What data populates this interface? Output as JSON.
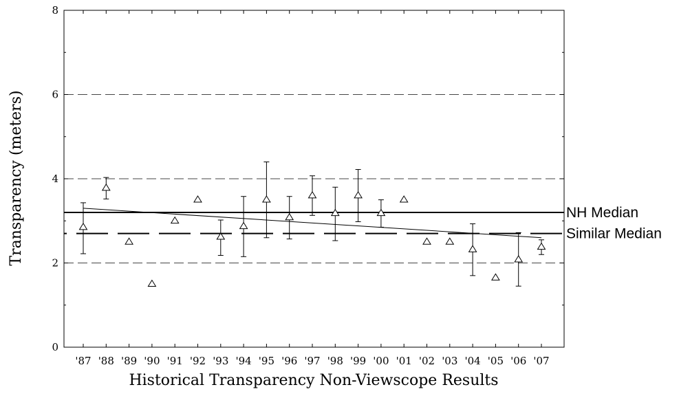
{
  "chart_data": {
    "type": "scatter",
    "xlabel": "Historical Transparency Non-Viewscope Results",
    "ylabel": "Transparency (meters)",
    "ylim": [
      0,
      8
    ],
    "yticks": [
      0,
      2,
      4,
      6,
      8
    ],
    "gridlines": [
      2,
      4,
      6
    ],
    "categories": [
      "'87",
      "'88",
      "'89",
      "'90",
      "'91",
      "'92",
      "'93",
      "'94",
      "'95",
      "'96",
      "'97",
      "'98",
      "'99",
      "'00",
      "'01",
      "'02",
      "'03",
      "'04",
      "'05",
      "'06",
      "'07"
    ],
    "series": [
      {
        "marker": "triangle",
        "values": [
          2.85,
          3.78,
          2.5,
          1.5,
          3.0,
          3.5,
          2.62,
          2.87,
          3.5,
          3.08,
          3.6,
          3.18,
          3.6,
          3.18,
          3.5,
          2.5,
          2.5,
          2.32,
          1.65,
          2.08,
          2.38
        ],
        "err_low": [
          2.22,
          3.52,
          null,
          null,
          null,
          null,
          2.18,
          2.15,
          2.6,
          2.57,
          3.13,
          2.53,
          2.98,
          2.85,
          null,
          null,
          null,
          1.7,
          null,
          1.45,
          2.2
        ],
        "err_high": [
          3.43,
          4.03,
          null,
          null,
          null,
          null,
          3.02,
          3.58,
          4.4,
          3.58,
          4.07,
          3.8,
          4.22,
          3.5,
          null,
          null,
          null,
          2.93,
          null,
          2.72,
          2.55
        ]
      }
    ],
    "trend_line": {
      "from": {
        "x": "'87",
        "y": 3.3
      },
      "to": {
        "x": "'07",
        "y": 2.6
      }
    },
    "reference_lines": [
      {
        "label": "NH Median",
        "value": 3.2,
        "style": "solid"
      },
      {
        "label": "Similar Median",
        "value": 2.7,
        "style": "long-dash"
      }
    ]
  }
}
